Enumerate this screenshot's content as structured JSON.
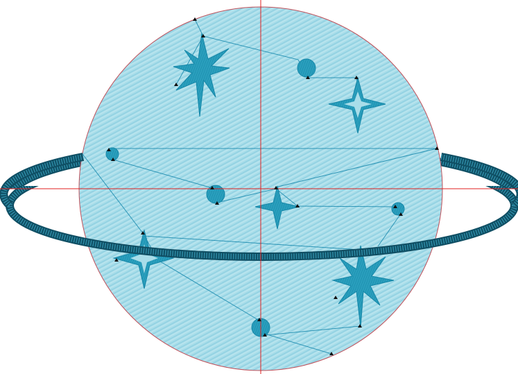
{
  "canvas": {
    "name": "embroidery-design-preview"
  },
  "colors": {
    "background": "#ffffff",
    "fill_light": "#a8dde9",
    "fill_stitch": "#7cc6dc",
    "motif": "#2a9fbd",
    "motif_dark": "#1687a8",
    "ring": "#1f6f86",
    "ring_dark": "#0f4e63",
    "travel_line": "#2b94b5",
    "outline": "#c0505a",
    "crosshair": "#e02020",
    "stitch_marker": "#111111"
  },
  "icons": {
    "planet": "planet-icon",
    "ring": "ring-icon",
    "star_large": "eight-point-star-icon",
    "star_small": "four-point-star-icon",
    "moon": "moon-dot-icon",
    "marker": "stitch-point-icon"
  }
}
